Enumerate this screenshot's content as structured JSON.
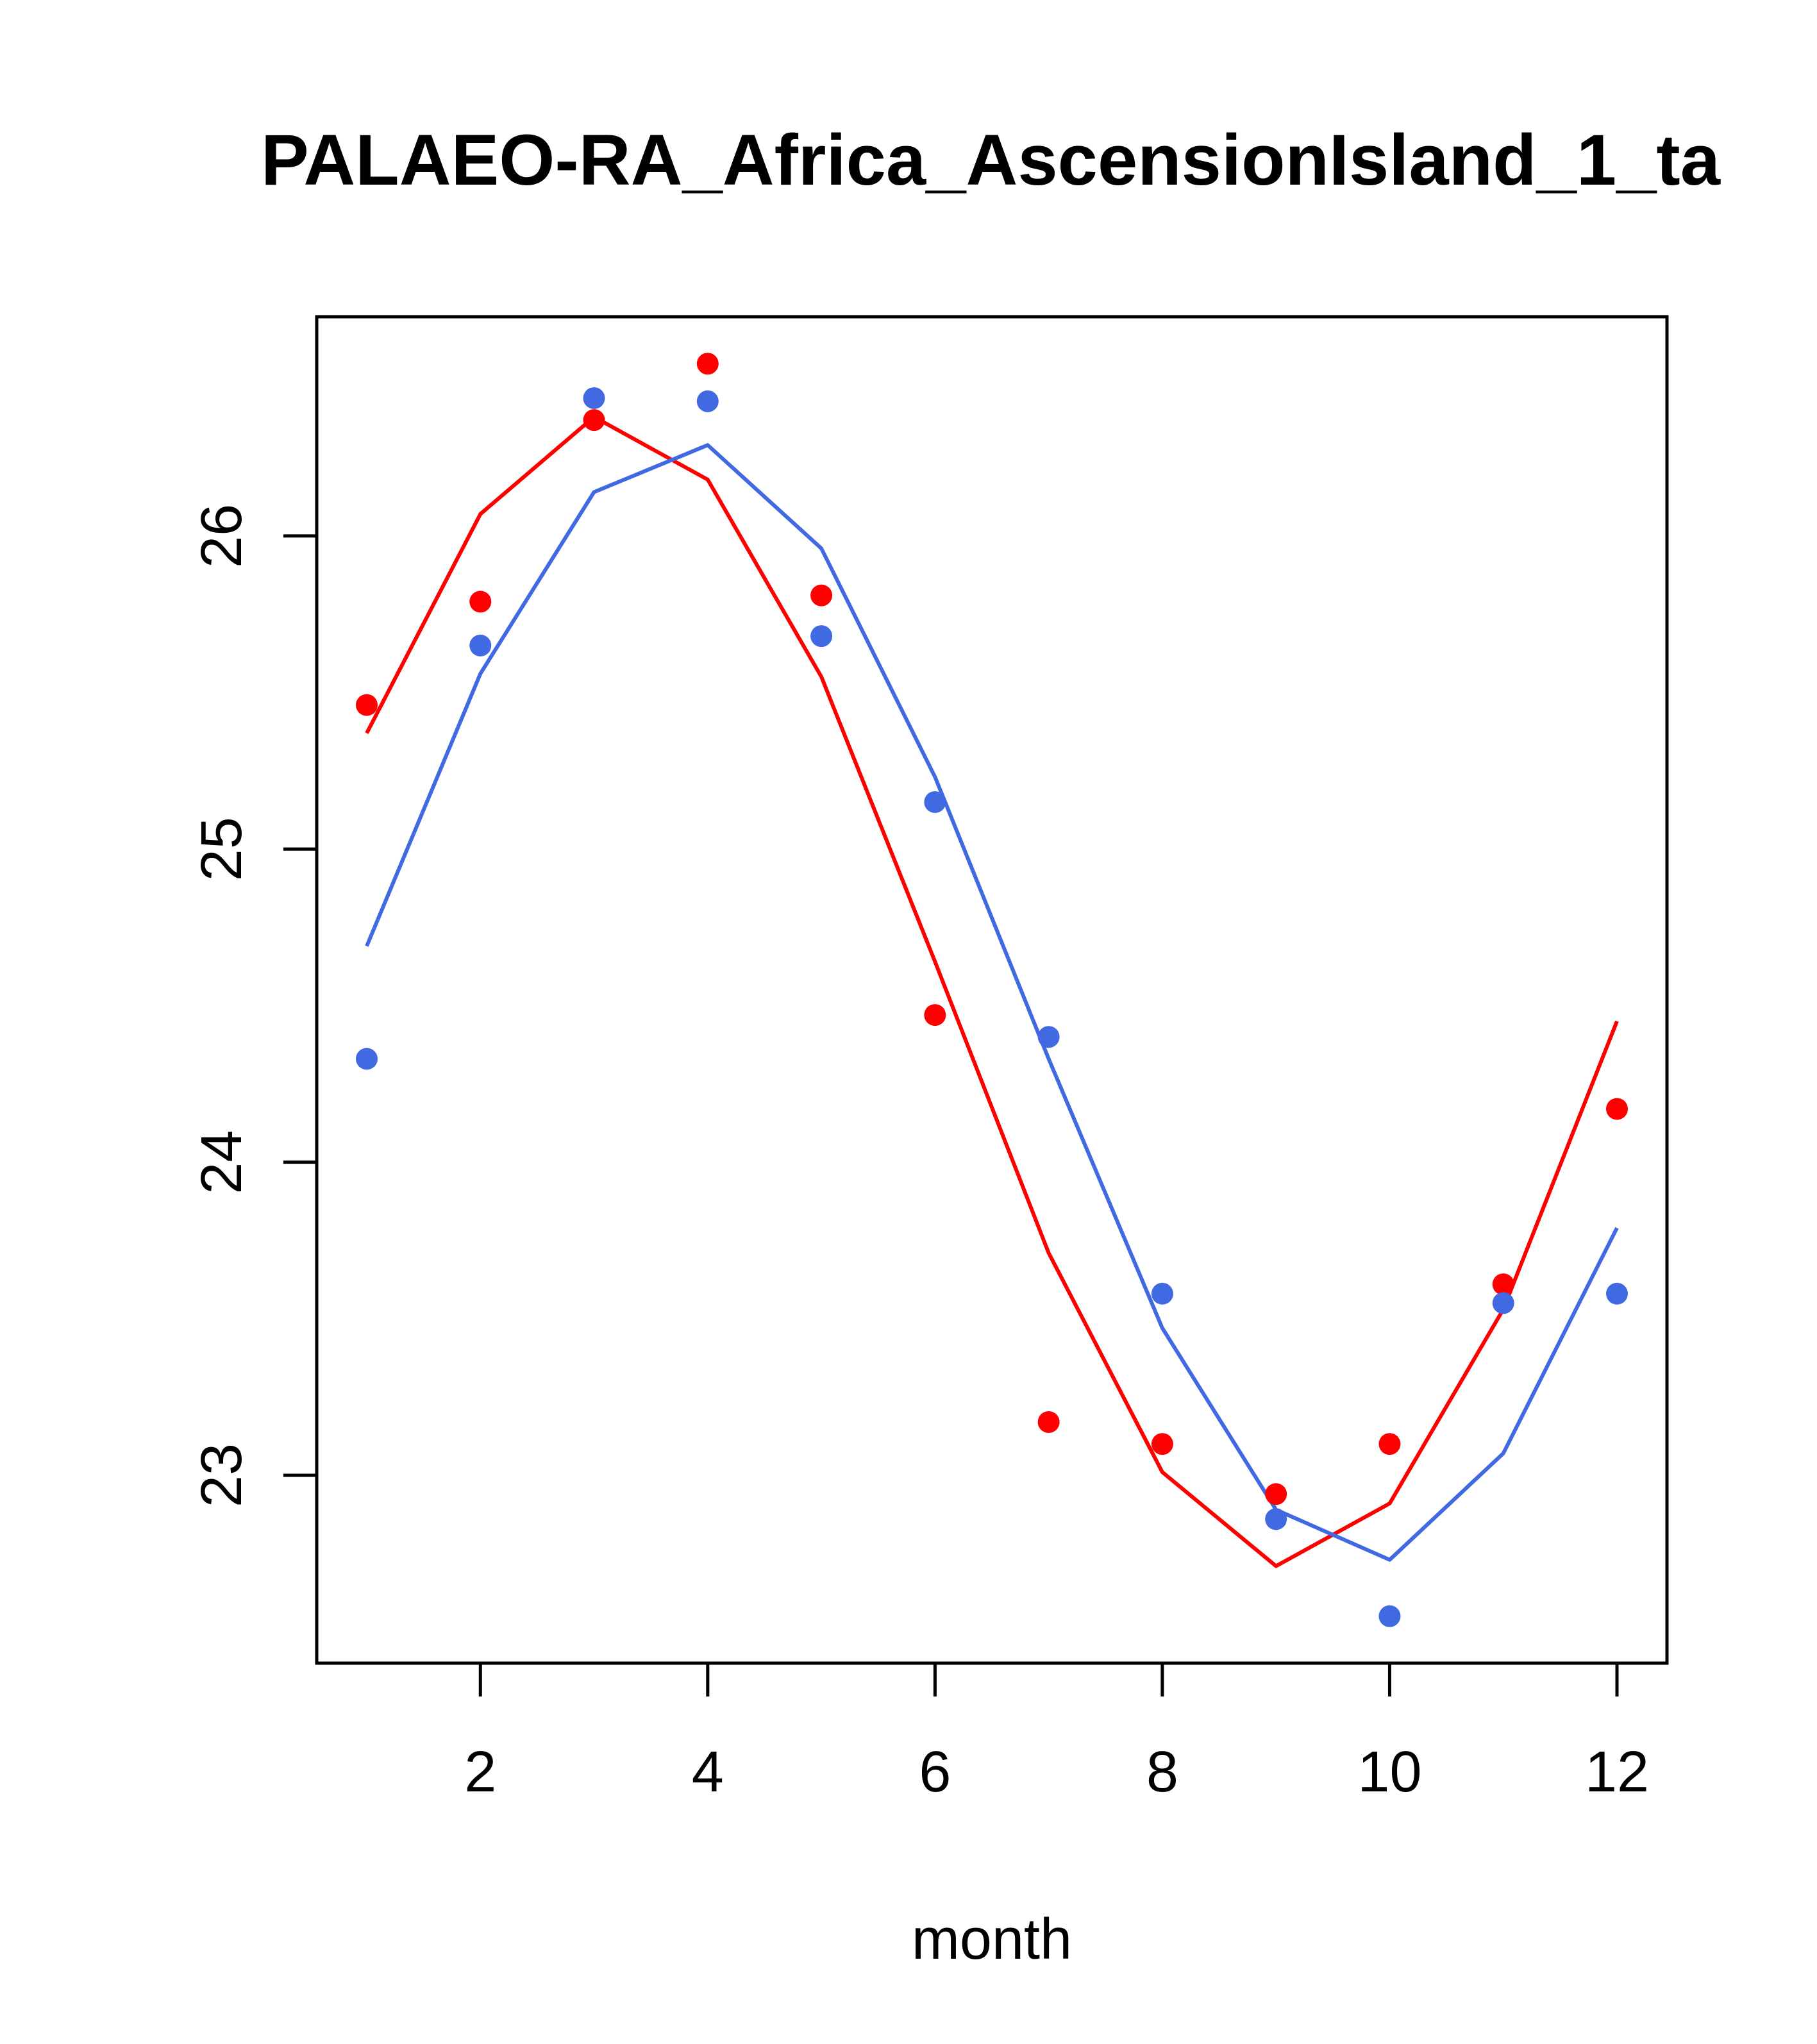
{
  "chart_data": {
    "type": "line",
    "title": "PALAEO-RA_Africa_AscensionIsland_1_ta",
    "xlabel": "month",
    "ylabel": "",
    "xlim": [
      0.56,
      12.44
    ],
    "ylim": [
      22.4,
      26.7
    ],
    "xticks": [
      2,
      4,
      6,
      8,
      10,
      12
    ],
    "yticks": [
      23,
      24,
      25,
      26
    ],
    "grid": false,
    "x": [
      1,
      2,
      3,
      4,
      5,
      6,
      7,
      8,
      9,
      10,
      11,
      12
    ],
    "series": [
      {
        "name": "red observed",
        "color": "#ff0000",
        "kind": "points",
        "values": [
          25.46,
          25.79,
          26.37,
          26.55,
          25.81,
          24.47,
          23.17,
          23.1,
          22.94,
          23.1,
          23.61,
          24.17
        ]
      },
      {
        "name": "blue observed",
        "color": "#4169e1",
        "kind": "points",
        "values": [
          24.33,
          25.65,
          26.44,
          26.43,
          25.68,
          25.15,
          24.4,
          23.58,
          22.86,
          22.55,
          23.55,
          23.58
        ]
      },
      {
        "name": "red fit",
        "color": "#ff0000",
        "kind": "line",
        "values": [
          25.37,
          26.07,
          26.38,
          26.18,
          25.55,
          24.64,
          23.71,
          23.01,
          22.71,
          22.91,
          23.53,
          24.45
        ]
      },
      {
        "name": "blue fit",
        "color": "#4169e1",
        "kind": "line",
        "values": [
          24.69,
          25.56,
          26.14,
          26.29,
          25.96,
          25.23,
          24.33,
          23.47,
          22.89,
          22.73,
          23.07,
          23.79
        ]
      }
    ]
  }
}
